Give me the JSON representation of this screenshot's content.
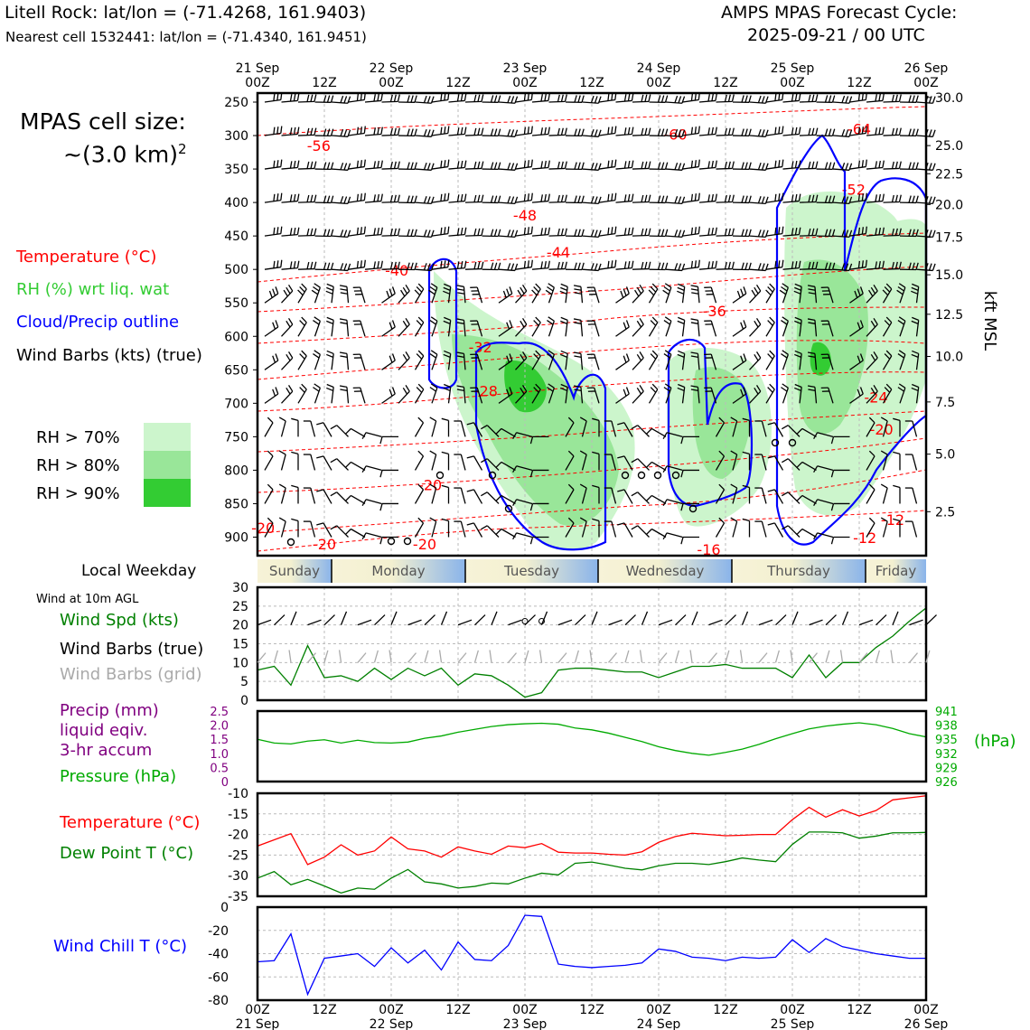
{
  "header": {
    "station_line": "Litell Rock: lat/lon = (-71.4268, 161.9403)",
    "cell_line": "Nearest cell 1532441: lat/lon = (-71.4340, 161.9451)",
    "cycle_title": "AMPS MPAS Forecast Cycle:",
    "cycle_time": "2025-09-21 / 00 UTC"
  },
  "sidebar": {
    "cell_size_label": "MPAS cell size:",
    "cell_size_value": "~(3.0 km)",
    "cell_size_exp": "2",
    "legend": [
      {
        "label": "Temperature (°C)",
        "color": "#ff0000"
      },
      {
        "label": "RH (%) wrt liq. wat",
        "color": "#33cc33"
      },
      {
        "label": "Cloud/Precip outline",
        "color": "#0000ff"
      },
      {
        "label": "Wind Barbs (kts) (true)",
        "color": "#000000"
      }
    ],
    "rh_legend": [
      {
        "label": "RH > 70%",
        "color": "#ccf5cc"
      },
      {
        "label": "RH > 80%",
        "color": "#99e699"
      },
      {
        "label": "RH > 90%",
        "color": "#33cc33"
      }
    ],
    "weekday_label": "Local Weekday",
    "wind_10m_label": "Wind at 10m AGL",
    "wind_legend": [
      {
        "label": "Wind Spd (kts)",
        "color": "#008000"
      },
      {
        "label": "Wind Barbs (true)",
        "color": "#000000"
      },
      {
        "label": "Wind Barbs (grid)",
        "color": "#aaaaaa"
      }
    ],
    "precip_legend": [
      {
        "label": "Precip (mm)",
        "color": "#800080"
      },
      {
        "label": "liquid eqiv.",
        "color": "#800080"
      },
      {
        "label": "3-hr accum",
        "color": "#800080"
      },
      {
        "label": "Pressure (hPa)",
        "color": "#00aa00"
      }
    ],
    "temp_legend": [
      {
        "label": "Temperature (°C)",
        "color": "#ff0000"
      },
      {
        "label": "Dew Point T (°C)",
        "color": "#008000"
      }
    ],
    "windchill_legend": {
      "label": "Wind Chill T (°C)",
      "color": "#0000ff"
    }
  },
  "chart_data": [
    {
      "type": "heatmap",
      "name": "cross-section",
      "x_labels_top": [
        {
          "x": 0,
          "l1": "21 Sep",
          "l2": "00Z"
        },
        {
          "x": 12,
          "l1": "",
          "l2": "12Z"
        },
        {
          "x": 24,
          "l1": "22 Sep",
          "l2": "00Z"
        },
        {
          "x": 36,
          "l1": "",
          "l2": "12Z"
        },
        {
          "x": 48,
          "l1": "23 Sep",
          "l2": "00Z"
        },
        {
          "x": 60,
          "l1": "",
          "l2": "12Z"
        },
        {
          "x": 72,
          "l1": "24 Sep",
          "l2": "00Z"
        },
        {
          "x": 84,
          "l1": "",
          "l2": "12Z"
        },
        {
          "x": 96,
          "l1": "25 Sep",
          "l2": "00Z"
        },
        {
          "x": 108,
          "l1": "",
          "l2": "12Z"
        },
        {
          "x": 120,
          "l1": "26 Sep",
          "l2": "00Z"
        }
      ],
      "ylabel_right": "kft MSL",
      "pressure_ticks": [
        250,
        300,
        350,
        400,
        450,
        500,
        550,
        600,
        650,
        700,
        750,
        800,
        850,
        900
      ],
      "height_ticks": [
        {
          "p": 243,
          "l": "30.0"
        },
        {
          "p": 315,
          "l": "25.0"
        },
        {
          "p": 357,
          "l": "22.5"
        },
        {
          "p": 403,
          "l": "20.0"
        },
        {
          "p": 452,
          "l": "17.5"
        },
        {
          "p": 508,
          "l": "15.0"
        },
        {
          "p": 567,
          "l": "12.5"
        },
        {
          "p": 630,
          "l": "10.0"
        },
        {
          "p": 698,
          "l": "7.5"
        },
        {
          "p": 776,
          "l": "5.0"
        },
        {
          "p": 862,
          "l": "2.5"
        }
      ],
      "temp_labels": [
        {
          "x": 11,
          "p": 315,
          "l": "-56"
        },
        {
          "x": 75,
          "p": 298,
          "l": "-60"
        },
        {
          "x": 108,
          "p": 290,
          "l": "-64"
        },
        {
          "x": 107,
          "p": 380,
          "l": "-52"
        },
        {
          "x": 48,
          "p": 419,
          "l": "-48"
        },
        {
          "x": 54,
          "p": 474,
          "l": "-44"
        },
        {
          "x": 25,
          "p": 501,
          "l": "-40"
        },
        {
          "x": 82,
          "p": 562,
          "l": "-36"
        },
        {
          "x": 40,
          "p": 616,
          "l": "-32"
        },
        {
          "x": 41,
          "p": 681,
          "l": "-28"
        },
        {
          "x": 111,
          "p": 691,
          "l": "-24"
        },
        {
          "x": 112,
          "p": 739,
          "l": "-20"
        },
        {
          "x": 31,
          "p": 822,
          "l": "-20"
        },
        {
          "x": 1,
          "p": 886,
          "l": "-20"
        },
        {
          "x": 12,
          "p": 910,
          "l": "-20"
        },
        {
          "x": 30,
          "p": 910,
          "l": "-20"
        },
        {
          "x": 114,
          "p": 874,
          "l": "-12"
        },
        {
          "x": 109,
          "p": 901,
          "l": "-12"
        },
        {
          "x": 81,
          "p": 918,
          "l": "-16"
        }
      ]
    },
    {
      "type": "line",
      "name": "wind-10m",
      "ylim": [
        0,
        30
      ],
      "yticks": [
        0,
        5,
        10,
        15,
        20,
        25,
        30
      ],
      "series": [
        {
          "color": "#008000",
          "x": [
            0,
            3,
            6,
            9,
            12,
            15,
            18,
            21,
            24,
            27,
            30,
            33,
            36,
            39,
            42,
            45,
            48,
            51,
            54,
            57,
            60,
            63,
            66,
            69,
            72,
            75,
            78,
            81,
            84,
            87,
            90,
            93,
            96,
            99,
            102,
            105,
            108,
            111,
            114,
            117,
            120
          ],
          "values": [
            8,
            9,
            4,
            14.5,
            6,
            6.5,
            5,
            8.5,
            5.5,
            8.5,
            6.5,
            8.5,
            4,
            7,
            6.5,
            4,
            0.8,
            2,
            8,
            8.5,
            8.5,
            8,
            7.5,
            7.5,
            6,
            7.5,
            9,
            9,
            9.5,
            8.5,
            8.5,
            8.5,
            6,
            12,
            6,
            10,
            10,
            14,
            17,
            21,
            24.5
          ]
        }
      ]
    },
    {
      "type": "line",
      "name": "pressure-precip",
      "ylim_left": [
        0,
        2.5
      ],
      "yticks_left": [
        "0",
        "0.5",
        "1.0",
        "1.5",
        "2.0",
        "2.5"
      ],
      "ylim_right": [
        926,
        941
      ],
      "yticks_right": [
        {
          "v": 926,
          "l": "926"
        },
        {
          "v": 929,
          "l": "929"
        },
        {
          "v": 932,
          "l": "932"
        },
        {
          "v": 935,
          "l": "935"
        },
        {
          "v": 938,
          "l": "938"
        },
        {
          "v": 941,
          "l": "941"
        }
      ],
      "unit_right": "(hPa)",
      "series": [
        {
          "color": "#00aa00",
          "x": [
            0,
            3,
            6,
            9,
            12,
            15,
            18,
            21,
            24,
            27,
            30,
            33,
            36,
            39,
            42,
            45,
            48,
            51,
            54,
            57,
            60,
            63,
            66,
            69,
            72,
            75,
            78,
            81,
            84,
            87,
            90,
            93,
            96,
            99,
            102,
            105,
            108,
            111,
            114,
            117,
            120
          ],
          "values": [
            935,
            934.2,
            934,
            934.6,
            934.9,
            934.2,
            934.8,
            934.3,
            934.2,
            934.4,
            935.2,
            935.7,
            936.5,
            937.1,
            937.7,
            938.1,
            938.3,
            938.4,
            938.2,
            937.4,
            937,
            936.3,
            935.4,
            934.5,
            933.4,
            932.6,
            932,
            931.6,
            932.2,
            932.9,
            933.9,
            935.1,
            936.2,
            937.2,
            937.8,
            938.2,
            938.5,
            938.1,
            937.3,
            936.2,
            935.5
          ]
        }
      ]
    },
    {
      "type": "line",
      "name": "temperature-dewpoint",
      "ylim": [
        -35,
        -10
      ],
      "yticks": [
        -35,
        -30,
        -25,
        -20,
        -15,
        -10
      ],
      "series": [
        {
          "color": "#ff0000",
          "x": [
            0,
            3,
            6,
            9,
            12,
            15,
            18,
            21,
            24,
            27,
            30,
            33,
            36,
            39,
            42,
            45,
            48,
            51,
            54,
            57,
            60,
            63,
            66,
            69,
            72,
            75,
            78,
            81,
            84,
            87,
            90,
            93,
            96,
            99,
            102,
            105,
            108,
            111,
            114,
            117,
            120
          ],
          "values": [
            -22.8,
            -21.3,
            -19.8,
            -27.3,
            -25.5,
            -22.5,
            -25,
            -24,
            -20.6,
            -23.5,
            -24,
            -25.5,
            -23,
            -24,
            -24.8,
            -22.8,
            -23.2,
            -22.2,
            -24.3,
            -24.5,
            -24.5,
            -24.8,
            -25,
            -24.2,
            -21.9,
            -20.5,
            -19.7,
            -20,
            -20.3,
            -20.2,
            -20,
            -20,
            -16.4,
            -13.4,
            -15.8,
            -14,
            -15.5,
            -14.2,
            -11.6,
            -11.1,
            -10.6
          ]
        },
        {
          "color": "#008000",
          "x": [
            0,
            3,
            6,
            9,
            12,
            15,
            18,
            21,
            24,
            27,
            30,
            33,
            36,
            39,
            42,
            45,
            48,
            51,
            54,
            57,
            60,
            63,
            66,
            69,
            72,
            75,
            78,
            81,
            84,
            87,
            90,
            93,
            96,
            99,
            102,
            105,
            108,
            111,
            114,
            117,
            120
          ],
          "values": [
            -30.6,
            -29,
            -32.2,
            -30.9,
            -32.5,
            -34.2,
            -33,
            -33.3,
            -30.6,
            -28.5,
            -31.5,
            -32,
            -33,
            -32.6,
            -31.8,
            -32,
            -30.6,
            -29.4,
            -29.8,
            -27,
            -26.7,
            -27.4,
            -28.2,
            -28.6,
            -27.6,
            -27,
            -27,
            -27.3,
            -26.6,
            -25.7,
            -26.2,
            -26.6,
            -22.4,
            -19.4,
            -19.4,
            -19.6,
            -20.9,
            -20.4,
            -19.6,
            -19.6,
            -19.5
          ]
        }
      ]
    },
    {
      "type": "line",
      "name": "wind-chill",
      "ylim": [
        -80,
        0
      ],
      "yticks": [
        -80,
        -60,
        -40,
        -20,
        0
      ],
      "x_labels_bottom": [
        {
          "x": 0,
          "l1": "00Z",
          "l2": "21 Sep"
        },
        {
          "x": 12,
          "l1": "12Z",
          "l2": ""
        },
        {
          "x": 24,
          "l1": "00Z",
          "l2": "22 Sep"
        },
        {
          "x": 36,
          "l1": "12Z",
          "l2": ""
        },
        {
          "x": 48,
          "l1": "00Z",
          "l2": "23 Sep"
        },
        {
          "x": 60,
          "l1": "12Z",
          "l2": ""
        },
        {
          "x": 72,
          "l1": "00Z",
          "l2": "24 Sep"
        },
        {
          "x": 84,
          "l1": "12Z",
          "l2": ""
        },
        {
          "x": 96,
          "l1": "00Z",
          "l2": "25 Sep"
        },
        {
          "x": 108,
          "l1": "12Z",
          "l2": ""
        },
        {
          "x": 120,
          "l1": "00Z",
          "l2": "26 Sep"
        }
      ],
      "series": [
        {
          "color": "#0000ff",
          "x": [
            0,
            3,
            6,
            9,
            12,
            15,
            18,
            21,
            24,
            27,
            30,
            33,
            36,
            39,
            42,
            45,
            48,
            51,
            54,
            57,
            60,
            63,
            66,
            69,
            72,
            75,
            78,
            81,
            84,
            87,
            90,
            93,
            96,
            99,
            102,
            105,
            108,
            111,
            114,
            117,
            120
          ],
          "values": [
            -47,
            -46,
            -23,
            -75,
            -44,
            -42,
            -40,
            -51,
            -35,
            -48,
            -37,
            -54,
            -30,
            -45,
            -46,
            -33,
            -7,
            -8,
            -49,
            -51,
            -52,
            -51,
            -50,
            -48,
            -36,
            -38,
            -43,
            -44,
            -46,
            -43,
            -44,
            -43,
            -28,
            -39,
            -27,
            -34,
            -37,
            -40,
            -42,
            -44,
            -44
          ]
        }
      ]
    }
  ],
  "weekdays": [
    "Sunday",
    "Monday",
    "Tuesday",
    "Wednesday",
    "Thursday",
    "Friday"
  ],
  "calm_markers_10m": [
    {
      "x": 48,
      "v": 21
    },
    {
      "x": 51,
      "v": 21
    }
  ]
}
